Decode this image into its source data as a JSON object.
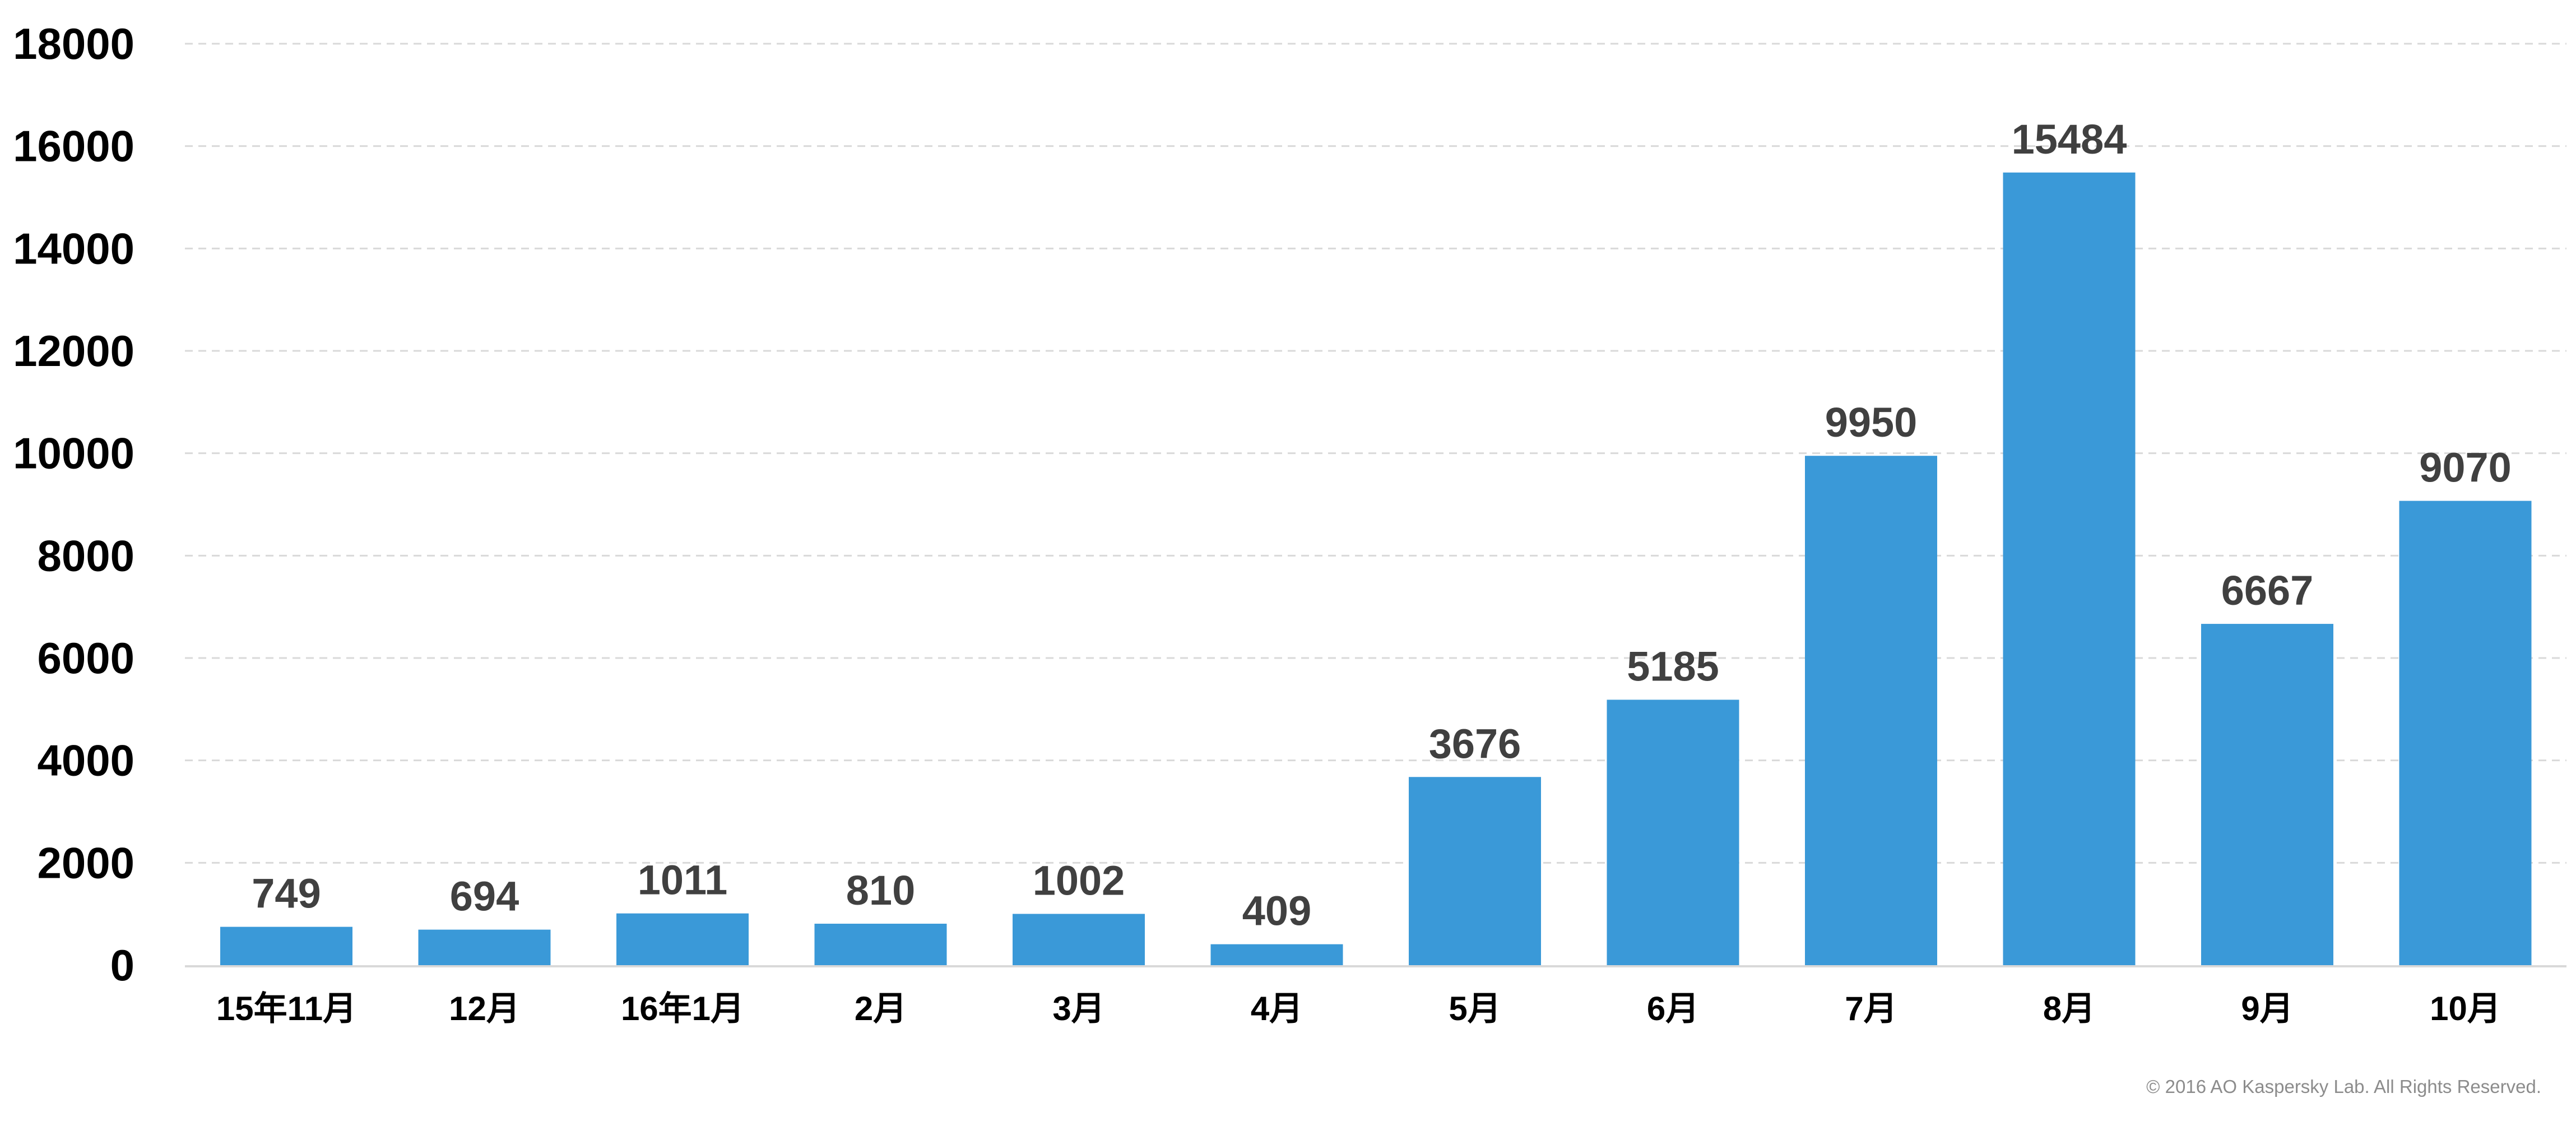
{
  "chart_data": {
    "type": "bar",
    "categories": [
      "15年11月",
      "12月",
      "16年1月",
      "2月",
      "3月",
      "4月",
      "5月",
      "6月",
      "7月",
      "8月",
      "9月",
      "10月"
    ],
    "values": [
      749,
      694,
      1011,
      810,
      1002,
      409,
      3676,
      5185,
      9950,
      15484,
      6667,
      9070
    ],
    "data_labels": [
      "749",
      "694",
      "1011",
      "810",
      "1002",
      "409",
      "3676",
      "5185",
      "9950",
      "15484",
      "6667",
      "9070"
    ],
    "y_ticks": [
      "0",
      "2000",
      "4000",
      "6000",
      "8000",
      "10000",
      "12000",
      "14000",
      "16000",
      "18000"
    ],
    "ylim": [
      0,
      18000
    ],
    "title": "",
    "xlabel": "",
    "ylabel": "",
    "grid": "horizontal-dashed",
    "legend": "none",
    "bar_color": "#3a99d8",
    "grid_color": "#d9d9d9",
    "label_color": "#404040"
  },
  "footer": {
    "copyright": "© 2016 AO Kaspersky Lab. All Rights Reserved."
  }
}
